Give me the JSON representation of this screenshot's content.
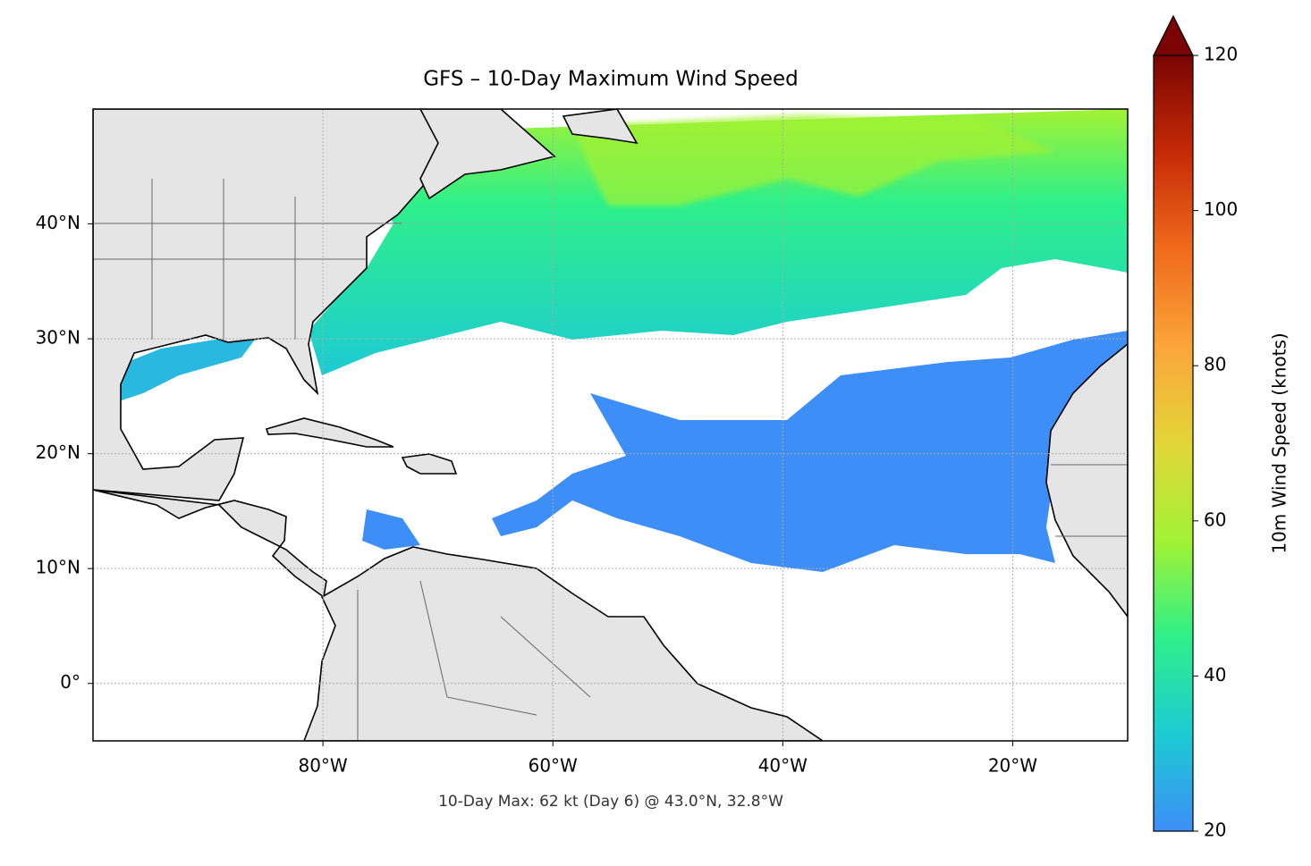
{
  "chart_data": {
    "type": "map",
    "title": "GFS – 10-Day Maximum Wind Speed",
    "annotation": "10-Day Max: 62 kt (Day 6) @ 43.0°N, 32.8°W",
    "xlim": [
      -100,
      -10
    ],
    "ylim": [
      -5,
      50
    ],
    "xticks": [
      {
        "value": -80,
        "label": "80°W"
      },
      {
        "value": -60,
        "label": "60°W"
      },
      {
        "value": -40,
        "label": "40°W"
      },
      {
        "value": -20,
        "label": "20°W"
      }
    ],
    "yticks": [
      {
        "value": 0,
        "label": "0°"
      },
      {
        "value": 10,
        "label": "10°N"
      },
      {
        "value": 20,
        "label": "20°N"
      },
      {
        "value": 30,
        "label": "30°N"
      },
      {
        "value": 40,
        "label": "40°N"
      }
    ],
    "grid": true,
    "colorbar": {
      "label": "10m Wind Speed (knots)",
      "lim": [
        20,
        120
      ],
      "ticks": [
        20,
        40,
        60,
        80,
        100,
        120
      ],
      "colors": [
        "#3d8ef7",
        "#1ccbd3",
        "#2ef08a",
        "#a3f233",
        "#e3d538",
        "#fba53a",
        "#f06a1c",
        "#c52a06",
        "#7a0403"
      ],
      "extend": "max"
    }
  }
}
